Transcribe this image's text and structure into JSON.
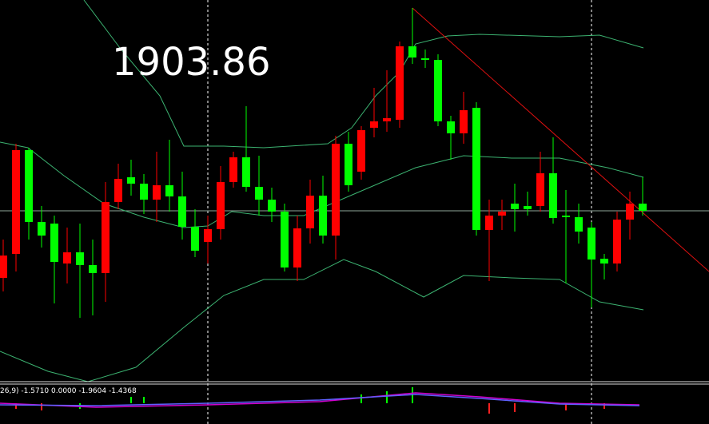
{
  "chart_data": {
    "type": "candlestick",
    "price_label": "1903.86",
    "indicator_label": "26,9) -1.5710 0.0000 -1.9604 -1.4368",
    "ylim": [
      0,
      478
    ],
    "up_color": "#ff0000",
    "down_color": "#00ff00",
    "open": [
      130,
      160,
      290,
      200,
      198,
      148,
      162,
      146,
      136,
      225,
      256,
      248,
      228,
      246,
      232,
      194,
      175,
      191,
      250,
      281,
      244,
      228,
      213,
      143,
      192,
      233,
      183,
      298,
      263,
      318,
      326,
      328,
      420,
      405,
      403,
      326,
      311,
      343,
      190,
      208,
      223,
      220,
      220,
      261,
      208,
      206,
      193,
      154,
      148,
      203,
      223
    ],
    "high": [
      178,
      298,
      293,
      220,
      208,
      193,
      198,
      178,
      250,
      273,
      278,
      260,
      288,
      303,
      263,
      216,
      208,
      270,
      288,
      345,
      283,
      243,
      223,
      208,
      253,
      258,
      308,
      313,
      320,
      368,
      390,
      426,
      468,
      416,
      410,
      333,
      363,
      350,
      228,
      228,
      248,
      238,
      288,
      306,
      240,
      223,
      200,
      160,
      213,
      238,
      256
    ],
    "low": [
      113,
      138,
      178,
      168,
      98,
      123,
      80,
      83,
      100,
      216,
      233,
      210,
      200,
      213,
      178,
      156,
      148,
      178,
      243,
      238,
      208,
      200,
      138,
      126,
      173,
      173,
      153,
      238,
      253,
      306,
      313,
      318,
      398,
      393,
      320,
      278,
      298,
      183,
      126,
      190,
      188,
      208,
      213,
      198,
      123,
      173,
      93,
      128,
      138,
      178,
      208
    ],
    "close": [
      158,
      290,
      200,
      183,
      150,
      162,
      146,
      136,
      225,
      254,
      248,
      228,
      246,
      232,
      194,
      164,
      191,
      250,
      281,
      244,
      228,
      213,
      143,
      192,
      233,
      183,
      298,
      246,
      315,
      326,
      330,
      420,
      406,
      403,
      326,
      311,
      340,
      190,
      208,
      213,
      216,
      216,
      261,
      205,
      206,
      188,
      153,
      148,
      203,
      223,
      214
    ]
  }
}
